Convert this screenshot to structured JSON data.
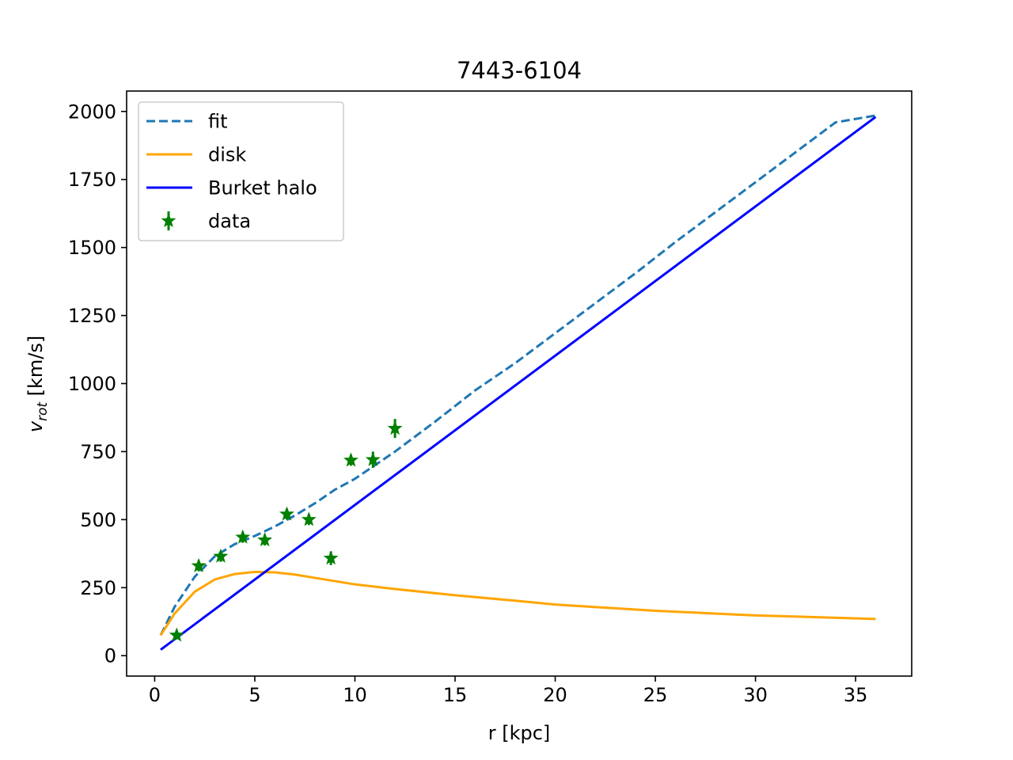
{
  "chart_data": {
    "type": "line",
    "title": "7443-6104",
    "xlabel": "r [kpc]",
    "ylabel_main": "v",
    "ylabel_sub": "rot",
    "ylabel_unit": " [km/s]",
    "xlim": [
      -1.4,
      37.8
    ],
    "ylim": [
      -75,
      2075
    ],
    "xticks": [
      0,
      5,
      10,
      15,
      20,
      25,
      30,
      35
    ],
    "yticks": [
      0,
      250,
      500,
      750,
      1000,
      1250,
      1500,
      1750,
      2000
    ],
    "legend_position": "upper-left",
    "series": [
      {
        "name": "fit",
        "style": "dashed",
        "color": "#1f77b4",
        "x": [
          0.3,
          1,
          2,
          3,
          4,
          5,
          6,
          7,
          8,
          9,
          10,
          11,
          12,
          14,
          16,
          18,
          20,
          22,
          24,
          26,
          28,
          30,
          32,
          34,
          36
        ],
        "y": [
          75,
          180,
          290,
          365,
          410,
          440,
          475,
          515,
          560,
          610,
          650,
          700,
          750,
          860,
          975,
          1075,
          1185,
          1295,
          1405,
          1520,
          1630,
          1740,
          1850,
          1960,
          1985
        ]
      },
      {
        "name": "disk",
        "style": "solid",
        "color": "#ffa500",
        "x": [
          0.3,
          1,
          2,
          3,
          4,
          5,
          6,
          7,
          8,
          10,
          12,
          15,
          18,
          20,
          25,
          30,
          36
        ],
        "y": [
          75,
          155,
          235,
          280,
          300,
          308,
          306,
          298,
          286,
          262,
          245,
          222,
          202,
          188,
          165,
          148,
          135
        ]
      },
      {
        "name": "Burket halo",
        "style": "solid",
        "color": "#0000ff",
        "x": [
          0.3,
          36
        ],
        "y": [
          22,
          1980
        ]
      },
      {
        "name": "data",
        "style": "marker",
        "color": "#008000",
        "points": [
          {
            "x": 1.1,
            "y": 75,
            "err": 15
          },
          {
            "x": 2.2,
            "y": 330,
            "err": 20
          },
          {
            "x": 3.3,
            "y": 365,
            "err": 20
          },
          {
            "x": 4.4,
            "y": 435,
            "err": 20
          },
          {
            "x": 5.5,
            "y": 425,
            "err": 20
          },
          {
            "x": 6.6,
            "y": 520,
            "err": 20
          },
          {
            "x": 7.7,
            "y": 500,
            "err": 20
          },
          {
            "x": 8.8,
            "y": 358,
            "err": 25
          },
          {
            "x": 9.8,
            "y": 718,
            "err": 20
          },
          {
            "x": 10.9,
            "y": 720,
            "err": 30
          },
          {
            "x": 12.0,
            "y": 835,
            "err": 35
          }
        ]
      }
    ]
  }
}
